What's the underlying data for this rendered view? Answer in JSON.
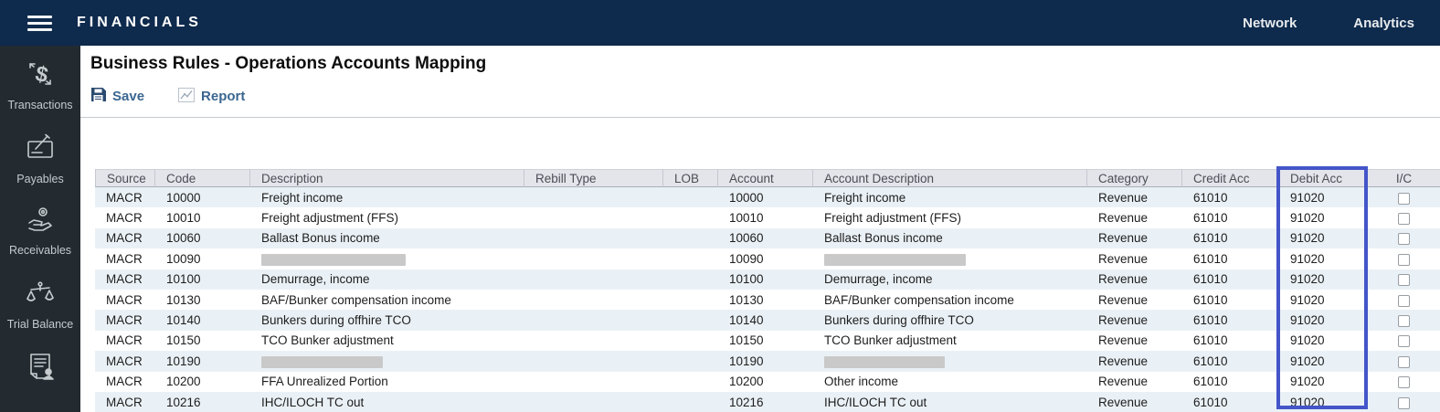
{
  "navbar": {
    "brand": "FINANCIALS",
    "links": [
      {
        "label": "Network"
      },
      {
        "label": "Analytics"
      }
    ]
  },
  "sidebar": {
    "items": [
      {
        "label": "Transactions",
        "icon": "dollar-arrows-icon"
      },
      {
        "label": "Payables",
        "icon": "check-pencil-icon"
      },
      {
        "label": "Receivables",
        "icon": "hand-coin-icon"
      },
      {
        "label": "Trial Balance",
        "icon": "scales-icon"
      },
      {
        "label": "",
        "icon": "document-person-icon"
      }
    ]
  },
  "page": {
    "title": "Business Rules - Operations Accounts Mapping",
    "toolbar": {
      "save_label": "Save",
      "report_label": "Report"
    }
  },
  "table": {
    "columns": [
      "Source",
      "Code",
      "Description",
      "Rebill Type",
      "LOB",
      "Account",
      "Account Description",
      "Category",
      "Credit Acc",
      "Debit Acc",
      "I/C"
    ],
    "highlighted_column": "Debit Acc",
    "rows": [
      {
        "source": "MACR",
        "code": "10000",
        "description": "Freight income",
        "description_redacted": false,
        "rebill_type": "",
        "lob": "",
        "account": "10000",
        "account_description": "Freight income",
        "account_description_redacted": false,
        "category": "Revenue",
        "credit_acc": "61010",
        "debit_acc": "91020",
        "ic_checked": false
      },
      {
        "source": "MACR",
        "code": "10010",
        "description": "Freight adjustment (FFS)",
        "description_redacted": false,
        "rebill_type": "",
        "lob": "",
        "account": "10010",
        "account_description": "Freight adjustment (FFS)",
        "account_description_redacted": false,
        "category": "Revenue",
        "credit_acc": "61010",
        "debit_acc": "91020",
        "ic_checked": false
      },
      {
        "source": "MACR",
        "code": "10060",
        "description": "Ballast Bonus income",
        "description_redacted": false,
        "rebill_type": "",
        "lob": "",
        "account": "10060",
        "account_description": "Ballast Bonus income",
        "account_description_redacted": false,
        "category": "Revenue",
        "credit_acc": "61010",
        "debit_acc": "91020",
        "ic_checked": false
      },
      {
        "source": "MACR",
        "code": "10090",
        "description": "",
        "description_redacted": true,
        "rebill_type": "",
        "lob": "",
        "account": "10090",
        "account_description": "",
        "account_description_redacted": true,
        "category": "Revenue",
        "credit_acc": "61010",
        "debit_acc": "91020",
        "ic_checked": false
      },
      {
        "source": "MACR",
        "code": "10100",
        "description": "Demurrage, income",
        "description_redacted": false,
        "rebill_type": "",
        "lob": "",
        "account": "10100",
        "account_description": "Demurrage, income",
        "account_description_redacted": false,
        "category": "Revenue",
        "credit_acc": "61010",
        "debit_acc": "91020",
        "ic_checked": false
      },
      {
        "source": "MACR",
        "code": "10130",
        "description": "BAF/Bunker compensation income",
        "description_redacted": false,
        "rebill_type": "",
        "lob": "",
        "account": "10130",
        "account_description": "BAF/Bunker compensation income",
        "account_description_redacted": false,
        "category": "Revenue",
        "credit_acc": "61010",
        "debit_acc": "91020",
        "ic_checked": false
      },
      {
        "source": "MACR",
        "code": "10140",
        "description": "Bunkers during offhire TCO",
        "description_redacted": false,
        "rebill_type": "",
        "lob": "",
        "account": "10140",
        "account_description": "Bunkers during offhire TCO",
        "account_description_redacted": false,
        "category": "Revenue",
        "credit_acc": "61010",
        "debit_acc": "91020",
        "ic_checked": false
      },
      {
        "source": "MACR",
        "code": "10150",
        "description": "TCO Bunker adjustment",
        "description_redacted": false,
        "rebill_type": "",
        "lob": "",
        "account": "10150",
        "account_description": "TCO Bunker adjustment",
        "account_description_redacted": false,
        "category": "Revenue",
        "credit_acc": "61010",
        "debit_acc": "91020",
        "ic_checked": false
      },
      {
        "source": "MACR",
        "code": "10190",
        "description": "",
        "description_redacted": true,
        "rebill_type": "",
        "lob": "",
        "account": "10190",
        "account_description": "",
        "account_description_redacted": true,
        "category": "Revenue",
        "credit_acc": "61010",
        "debit_acc": "91020",
        "ic_checked": false
      },
      {
        "source": "MACR",
        "code": "10200",
        "description": "FFA Unrealized Portion",
        "description_redacted": false,
        "rebill_type": "",
        "lob": "",
        "account": "10200",
        "account_description": "Other income",
        "account_description_redacted": false,
        "category": "Revenue",
        "credit_acc": "61010",
        "debit_acc": "91020",
        "ic_checked": false
      },
      {
        "source": "MACR",
        "code": "10216",
        "description": "IHC/ILOCH TC out",
        "description_redacted": false,
        "rebill_type": "",
        "lob": "",
        "account": "10216",
        "account_description": "IHC/ILOCH TC out",
        "account_description_redacted": false,
        "category": "Revenue",
        "credit_acc": "61010",
        "debit_acc": "91020",
        "ic_checked": false
      }
    ]
  },
  "colors": {
    "navbar_bg": "#0e2a4d",
    "sidebar_bg": "#232b31",
    "header_bg": "#e4e5eb",
    "row_alt_bg": "#eaf1f6",
    "highlight_border": "#4355c8",
    "toolbar_link": "#3a6690"
  }
}
